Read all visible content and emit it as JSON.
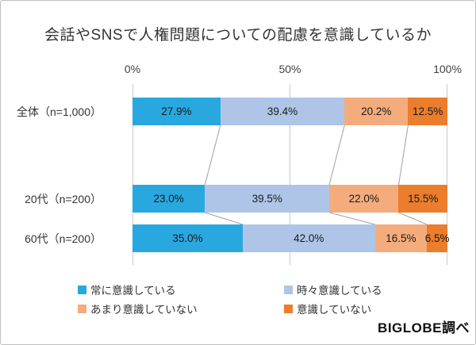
{
  "title": "会話やSNSで人権問題についての配慮を意識しているか",
  "source_credit": "BIGLOBE調べ",
  "chart_data": {
    "type": "bar",
    "stacked": true,
    "orientation": "horizontal",
    "title": "会話やSNSで人権問題についての配慮を意識しているか",
    "categories": [
      "全体（n=1,000）",
      "20代（n=200）",
      "60代（n=200）"
    ],
    "series": [
      {
        "name": "常に意識している",
        "color": "#29a8e0",
        "values": [
          27.9,
          23.0,
          35.0
        ]
      },
      {
        "name": "時々意識している",
        "color": "#aec5e8",
        "values": [
          39.4,
          39.5,
          42.0
        ]
      },
      {
        "name": "あまり意識していない",
        "color": "#f4ac7c",
        "values": [
          20.2,
          22.0,
          16.5
        ]
      },
      {
        "name": "意識していない",
        "color": "#eb7d2c",
        "values": [
          12.5,
          15.5,
          6.5
        ]
      }
    ],
    "xlim": [
      0,
      100
    ],
    "x_ticks": [
      {
        "value": 0,
        "label": "0%"
      },
      {
        "value": 50,
        "label": "50%"
      },
      {
        "value": 100,
        "label": "100%"
      }
    ],
    "value_suffix": "%",
    "value_decimals": 1,
    "grid": true,
    "legend_position": "bottom",
    "colors": {
      "gridline": "#c9c9c9",
      "connector": "#a0a0a0",
      "label_text": "#1a1a1a"
    }
  }
}
